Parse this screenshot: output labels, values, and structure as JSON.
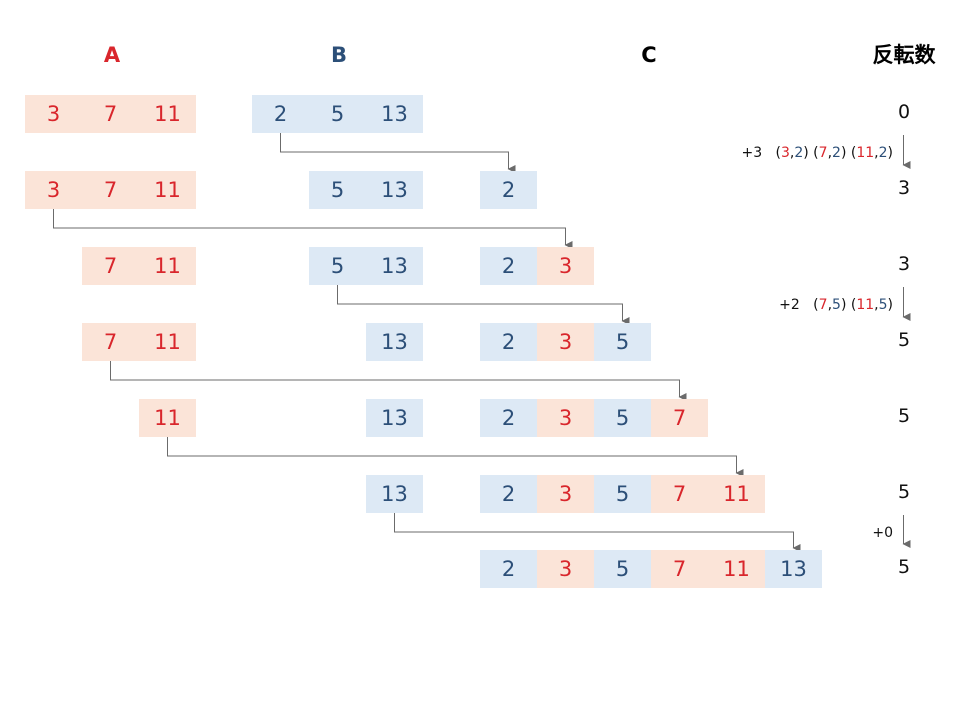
{
  "headers": {
    "a": "A",
    "b": "B",
    "c": "C",
    "inversions": "反転数"
  },
  "colors": {
    "a": "#d9262c",
    "b": "#2c4f78",
    "a_fill": "#fbe4d8",
    "b_fill": "#dde9f5"
  },
  "steps": [
    {
      "a": [
        "3",
        "7",
        "11"
      ],
      "b": [
        "2",
        "5",
        "13"
      ],
      "c": [],
      "inv": "0"
    },
    {
      "a": [
        "3",
        "7",
        "11"
      ],
      "b": [
        "5",
        "13"
      ],
      "c": [
        "2"
      ],
      "inv": "3"
    },
    {
      "a": [
        "7",
        "11"
      ],
      "b": [
        "5",
        "13"
      ],
      "c": [
        "2",
        "3"
      ],
      "inv": "3"
    },
    {
      "a": [
        "7",
        "11"
      ],
      "b": [
        "13"
      ],
      "c": [
        "2",
        "3",
        "5"
      ],
      "inv": "5"
    },
    {
      "a": [
        "11"
      ],
      "b": [
        "13"
      ],
      "c": [
        "2",
        "3",
        "5",
        "7"
      ],
      "inv": "5"
    },
    {
      "a": [],
      "b": [
        "13"
      ],
      "c": [
        "2",
        "3",
        "5",
        "7",
        "11"
      ],
      "inv": "5"
    },
    {
      "a": [],
      "b": [],
      "c": [
        "2",
        "3",
        "5",
        "7",
        "11",
        "13"
      ],
      "inv": "5"
    }
  ],
  "annotations": [
    {
      "delta": "+3",
      "pairs": [
        {
          "a": "3",
          "b": "2"
        },
        {
          "a": "7",
          "b": "2"
        },
        {
          "a": "11",
          "b": "2"
        }
      ]
    },
    {
      "delta": "+2",
      "pairs": [
        {
          "a": "7",
          "b": "5"
        },
        {
          "a": "11",
          "b": "5"
        }
      ]
    },
    {
      "delta": "+0",
      "pairs": []
    }
  ]
}
